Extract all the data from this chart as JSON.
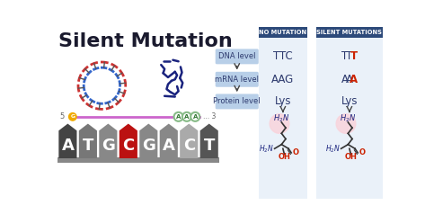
{
  "title": "Silent Mutation",
  "bg_color": "#ffffff",
  "title_color": "#1a1a2e",
  "header_no_mutation": "NO MUTATION",
  "header_silent": "SILENT MUTATIONS",
  "header_bg": "#2d4a7a",
  "col_bg": "#dce8f5",
  "levels": [
    "DNA level",
    "mRNA level",
    "Protein level"
  ],
  "level_box_color": "#b8cfe8",
  "no_mutation_data": [
    "TTC",
    "AAG",
    "Lys"
  ],
  "silent_mutation_data": [
    "TTT",
    "AAA",
    "Lys"
  ],
  "mutation_highlight_color": "#cc2200",
  "normal_text_color": "#2d3a6e",
  "dna_bases": [
    "A",
    "T",
    "G",
    "C",
    "G",
    "A",
    "C",
    "T"
  ],
  "tile_colors": [
    "#444444",
    "#777777",
    "#888888",
    "#bb1111",
    "#888888",
    "#888888",
    "#aaaaaa",
    "#555555"
  ],
  "strand_color": "#cc66cc",
  "g_circle_color": "#f0aa00",
  "aaa_circle_color": "#88bb88",
  "dna_outer_color": "#cc3333",
  "dna_inner_color": "#3366cc",
  "dna_rung_color": "#555555",
  "mrna_color": "#1a237e",
  "arrow_color": "#444444",
  "lys_pink_bg": "#f9d4dc",
  "lys_text_color": "#1a237e",
  "lys_red_color": "#cc2200"
}
